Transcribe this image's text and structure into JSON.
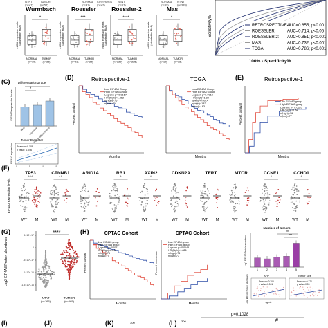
{
  "panel_labels": {
    "C": "(C)",
    "D": "(D)",
    "E": "(E)",
    "F": "(F)",
    "G": "(G)",
    "H": "(H)",
    "I": "(I)",
    "J": "(J)",
    "K": "(K)",
    "L": "(L)"
  },
  "colors": {
    "low": "#2f4fa8",
    "high": "#e0483a",
    "dots": "#8a8a8a",
    "tumor_dots": "#c0302e",
    "bar_purple": "#9b3fa6",
    "roc_navy": "#1c2a6b",
    "roc_gray": "#9a9a9a",
    "bar_blue": "#9fc3e6"
  },
  "row1": {
    "top_header": {
      "g1": "NTNT",
      "g1n": "(n=47)",
      "g2": "TUMOR",
      "g2n": "(n=57)",
      "g3": "NORMAL",
      "g3n": "(n=41)",
      "g4": "CIRRHOSIS",
      "g4n": "(n=42)",
      "g5": "NTNT",
      "g5n": "(n=57)",
      "g6": "NORMAL",
      "g6n": "(n=59)",
      "g7": "NTNT",
      "g7n": "(n=339)"
    },
    "ylabel_l1": "mRNA expression levels",
    "ylabel_l2": "(adjusted by RMA)",
    "normal": "NORMAL",
    "tumor": "TUMOR",
    "plots": [
      {
        "title": "Wurmbach",
        "n1": "(n=10)",
        "n2": "(n=35)",
        "sig": "*"
      },
      {
        "title": "Roessler",
        "n1": "(n=21)",
        "n2": "(n=22)",
        "sig": "***"
      },
      {
        "title": "Roessler-2",
        "n1": "(n=220)",
        "n2": "(n=225)",
        "sig": "****"
      },
      {
        "title": "Mas",
        "n1": "(n=19)",
        "n2": "(n=38)",
        "sig": "*"
      }
    ],
    "roc": {
      "ylabel": "Sensitivity%",
      "xlabel": "100% - Specificity%",
      "legend": [
        {
          "name": "RETROSPECTIVE-1:",
          "auc": "AUC=0.655; p<0.001"
        },
        {
          "name": "ROESSLER:",
          "auc": "AUC=0.714; p<0.05"
        },
        {
          "name": "ROESSLER 2:",
          "auc": "AUC=0.851; p<0.001"
        },
        {
          "name": "MAS:",
          "auc": "AUC=0.732; p<0.001"
        },
        {
          "name": "TCGA:",
          "auc": "AUC=0.786; p<0.001"
        }
      ]
    }
  },
  "panelC": {
    "title": "Differentiation grade",
    "ylabel": "EIF4A3 expression levels",
    "sig1": "*",
    "sig2": "*",
    "cats": [
      "Well",
      "Moderate",
      "Poorly differentiated"
    ],
    "diam_title": "Tumor Diameter",
    "pearson": "Pearson=0.108",
    "pval": "p value: 0.046",
    "diam_ylabel": "EIF4A3 expression",
    "xticks": [
      "0",
      "5",
      "10",
      "15"
    ]
  },
  "panelD": {
    "title1": "Retrospective-1",
    "title2": "TCGA",
    "ylabel": "Percent survival",
    "xlabel": "Months",
    "legend_low": "Low EIF4A3 Group",
    "legend_high": "High EIF4A3 Group",
    "stats1": [
      "Logrank   p= 0.0167",
      "HR (high)=1.862",
      "n(high)=75",
      "n(low)=74"
    ],
    "stats2": [
      "Logrank   p=0.0013",
      "HR(high)=1.82",
      "p(HR)=0.0014",
      "n(high)=182",
      "n(low)=183"
    ]
  },
  "panelE": {
    "title": "Retrospective-1",
    "ylabel": "Percent survival",
    "xlabel": "Months",
    "legend_low": "Low EIF4A3 group",
    "legend_high": "High EIF4A3 group",
    "stats": [
      "Logrank   p= 0.0320",
      "HR (high)=1.64",
      "n(high)=76",
      "n(low)=77"
    ]
  },
  "panelF": {
    "ylabel": "EIF4A3 expression levels",
    "wt": "WT",
    "m": "M",
    "genes": [
      {
        "name": "TP53",
        "sig": "***"
      },
      {
        "name": "CTNNB1",
        "sig": "**"
      },
      {
        "name": "ARID1A",
        "sig": ""
      },
      {
        "name": "RB1",
        "sig": "*"
      },
      {
        "name": "AXIN2",
        "sig": "*"
      },
      {
        "name": "CDKN2A",
        "sig": ""
      },
      {
        "name": "TERT",
        "sig": ""
      },
      {
        "name": "MTOR",
        "sig": ""
      },
      {
        "name": "CCNE1",
        "sig": "*"
      },
      {
        "name": "CCND1",
        "sig": "*"
      }
    ]
  },
  "panelG": {
    "ylabel": "Log2 EIF4A3 Protein abundance",
    "sig": "****",
    "yticks": [
      "5×10^-17",
      "0",
      "-5×10^-17",
      "-1×10^-16",
      "-1.5×10^-16"
    ],
    "x1": "NTAT",
    "x1n": "(n=165)",
    "x2": "TUMOR",
    "x2n": "(n=165)"
  },
  "panelH": {
    "title": "CPTAC Cohort",
    "km1": {
      "ylabel": "Percent survival",
      "xlabel": "Months",
      "legend_low": "Low EIF4A3 group",
      "legend_high": "High EIF4A3 group",
      "stats": [
        "Logrank   p= 0.0111",
        "HR (high)=2.248",
        "n(high)=76",
        "n(low)=77"
      ]
    },
    "km2": {
      "ylabel": "Percent recurrence",
      "xlabel": "Months",
      "legend_low": "Low EIF4A3 group",
      "legend_high": "High EIF4A3 group",
      "stats": [
        "Logrank   p= 0.0145",
        "HR (high)=1.826",
        "n(high)=76",
        "n(low)=77"
      ]
    },
    "tumors": {
      "title": "Number of tumors",
      "ylabel": "Log2 EIF4A3 Protein abundance",
      "sig1": "**",
      "sig2": "**",
      "cats": [
        "1",
        "2",
        "3",
        "4",
        "5"
      ]
    },
    "afp": {
      "title": "AFP",
      "pearson": "Pearson=0.208",
      "pval": "p value=0.001",
      "xlabel": "ng/mL",
      "ylabel": "Log2 EIF4A3 Protein abundance"
    },
    "size": {
      "title": "Tumor size",
      "pearson": "Pearson=0.172",
      "pval": "p value=0.03"
    }
  },
  "bottom": {
    "ytick": "300",
    "pval": "p=0.1028"
  }
}
